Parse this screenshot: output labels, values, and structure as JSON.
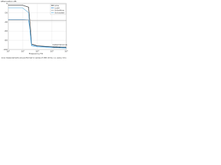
{
  "chart_data": {
    "type": "line",
    "y_label": "Attenuation dB",
    "x_label": "Frequency Hz",
    "x": [
      10,
      100,
      250,
      350,
      400,
      1000,
      10000,
      100000
    ],
    "xlim": [
      10,
      100000
    ],
    "xticks": [
      {
        "value": 10,
        "label": "10¹"
      },
      {
        "value": 100,
        "label": "10²"
      },
      {
        "value": 1000,
        "label": "10³"
      },
      {
        "value": 10000,
        "label": "10⁴"
      },
      {
        "value": 100000,
        "label": "10⁵"
      }
    ],
    "log_x": true,
    "ylim": [
      -100,
      0
    ],
    "yticks": [
      0,
      -20,
      -40,
      -60,
      -80,
      -100
    ],
    "grid": true,
    "series": [
      {
        "name": "Line",
        "color": "#333333",
        "values": [
          -4,
          -4,
          -8,
          -60,
          -88,
          -92,
          -94,
          -95
        ]
      },
      {
        "name": "Load",
        "color": "#3d8fd1",
        "values": [
          -35,
          -35,
          -36,
          -70,
          -90,
          -93,
          -95,
          -96
        ]
      },
      {
        "name": "Inductive",
        "color": "#9a9a9a",
        "values": [
          -36,
          -36,
          -36,
          -36,
          -37,
          -37,
          -37,
          -37
        ]
      },
      {
        "name": "Unloaded",
        "color": "#6fb7e0",
        "values": [
          -10,
          -10,
          -20,
          -80,
          -92,
          -94,
          -96,
          -97
        ]
      }
    ],
    "legend": "upper right",
    "annotations": [
      "Instantaneous",
      "Cyclical"
    ],
    "footnote": "Line measurements are performed in series of 200 ohms, i.e. every 14 s"
  }
}
